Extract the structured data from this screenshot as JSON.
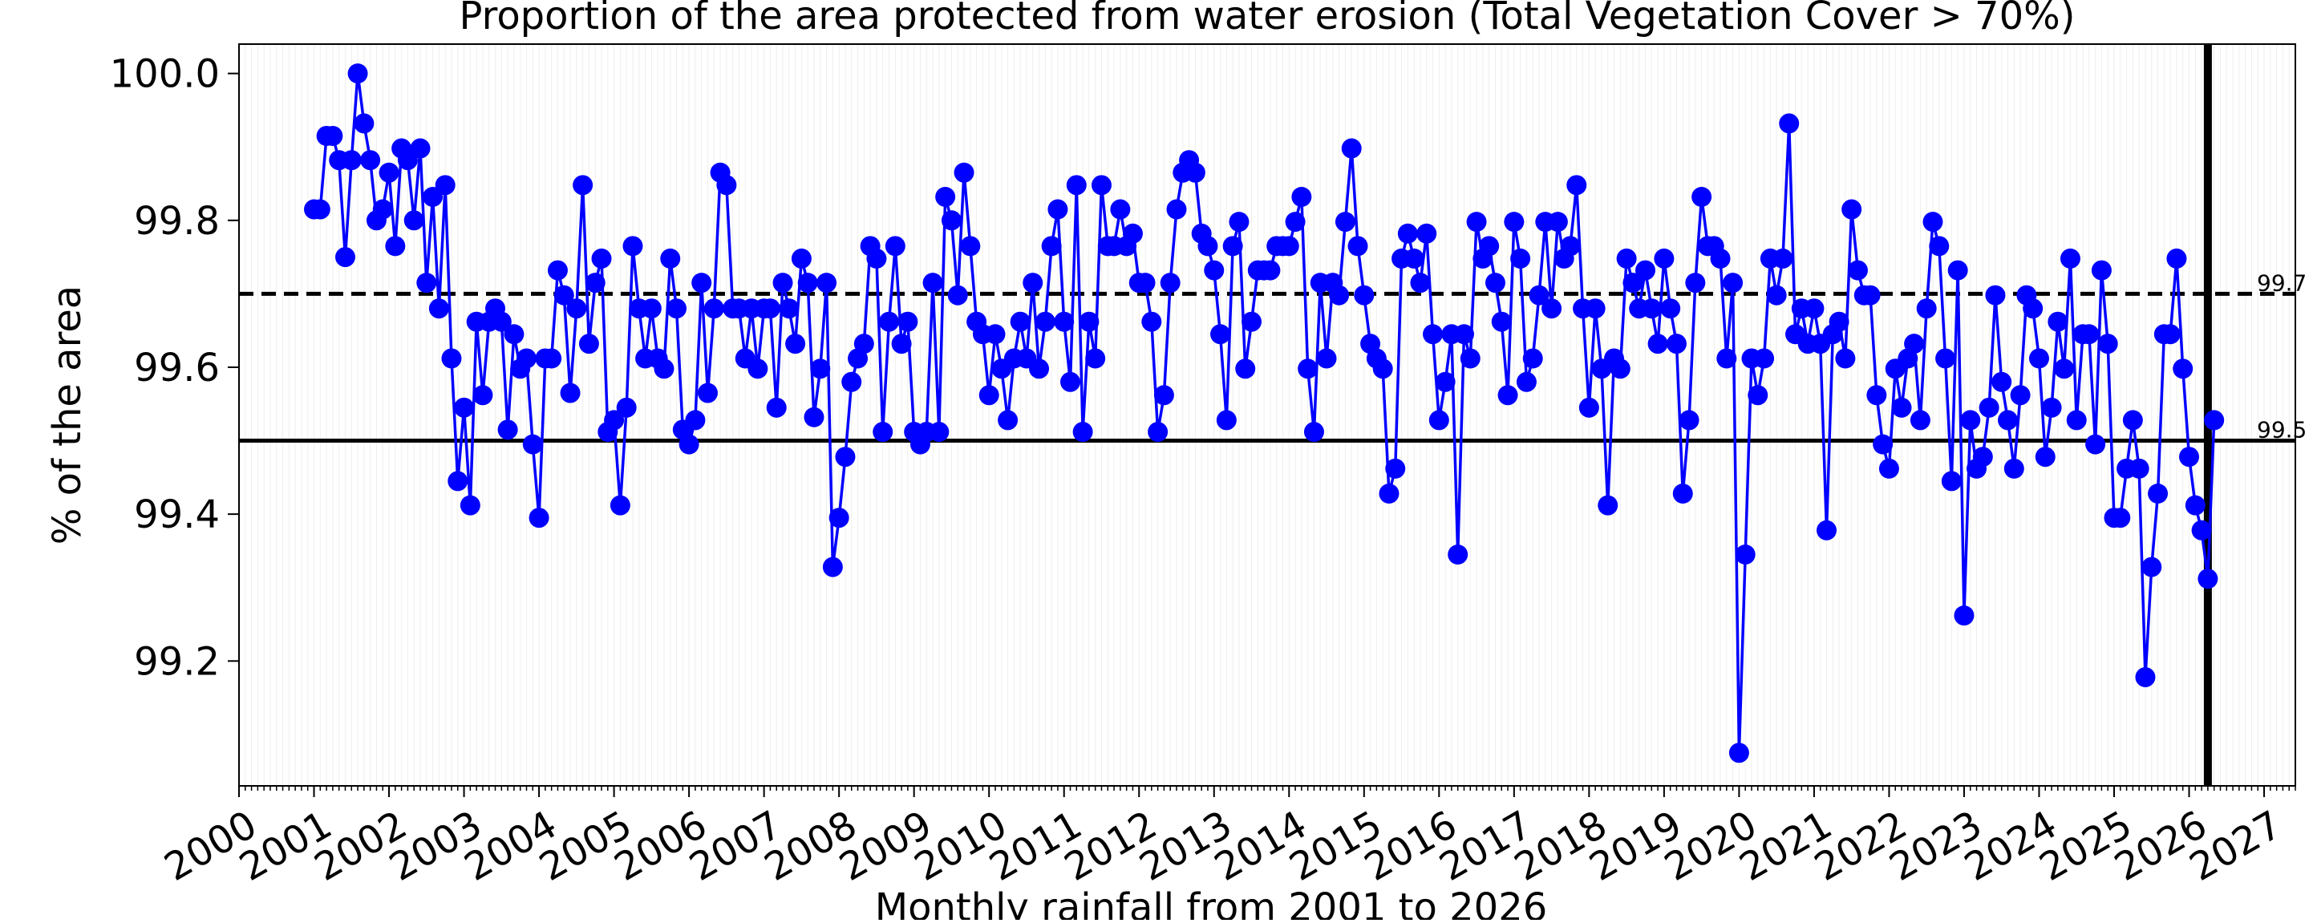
{
  "chart_data": {
    "type": "line",
    "title": "Proportion of the area protected from water erosion (Total Vegetation Cover > 70%)",
    "xlabel": "Monthly rainfall from 2001  to 2026",
    "ylabel": "% of the area",
    "xlim": [
      "2000-01",
      "2027-06"
    ],
    "ylim": [
      99.03,
      100.04
    ],
    "x_ticks": [
      "2000",
      "2001",
      "2002",
      "2003",
      "2004",
      "2005",
      "2006",
      "2007",
      "2008",
      "2009",
      "2010",
      "2011",
      "2012",
      "2013",
      "2014",
      "2015",
      "2016",
      "2017",
      "2018",
      "2019",
      "2020",
      "2021",
      "2022",
      "2023",
      "2024",
      "2025",
      "2026",
      "2027"
    ],
    "y_ticks": [
      "99.2",
      "99.4",
      "99.6",
      "99.8",
      "100.0"
    ],
    "reference_lines": [
      {
        "value": 99.7,
        "style": "dashed",
        "label": "99.7"
      },
      {
        "value": 99.5,
        "style": "solid",
        "label": "99.5"
      }
    ],
    "marker_line": {
      "date": "2026-04",
      "style": "solid thick"
    },
    "grid": "x-minor",
    "series_color": "#0000ff",
    "start_date": "2001-01",
    "frequency": "monthly",
    "series": [
      {
        "values": [
          99.815,
          99.815,
          99.915,
          99.915,
          99.882,
          99.75,
          99.882,
          100.0,
          99.932,
          99.882,
          99.8,
          99.815,
          99.865,
          99.765,
          99.898,
          99.882,
          99.8,
          99.898,
          99.715,
          99.832,
          99.68,
          99.848,
          99.612,
          99.445,
          99.545,
          99.412,
          99.662,
          99.562,
          99.662,
          99.68,
          99.662,
          99.515,
          99.645,
          99.598,
          99.612,
          99.495,
          99.395,
          99.612,
          99.612,
          99.732,
          99.698,
          99.565,
          99.68,
          99.848,
          99.632,
          99.715,
          99.748,
          99.512,
          99.528,
          99.412,
          99.545,
          99.765,
          99.68,
          99.612,
          99.68,
          99.612,
          99.598,
          99.748,
          99.68,
          99.515,
          99.495,
          99.528,
          99.715,
          99.565,
          99.68,
          99.865,
          99.848,
          99.68,
          99.68,
          99.612,
          99.68,
          99.598,
          99.68,
          99.68,
          99.545,
          99.715,
          99.68,
          99.632,
          99.748,
          99.715,
          99.532,
          99.598,
          99.715,
          99.328,
          99.395,
          99.478,
          99.58,
          99.612,
          99.632,
          99.765,
          99.748,
          99.512,
          99.662,
          99.765,
          99.632,
          99.662,
          99.512,
          99.495,
          99.512,
          99.715,
          99.512,
          99.832,
          99.8,
          99.698,
          99.865,
          99.765,
          99.662,
          99.645,
          99.562,
          99.645,
          99.598,
          99.528,
          99.612,
          99.662,
          99.612,
          99.715,
          99.598,
          99.662,
          99.765,
          99.815,
          99.662,
          99.58,
          99.848,
          99.512,
          99.662,
          99.612,
          99.848,
          99.765,
          99.765,
          99.815,
          99.765,
          99.782,
          99.715,
          99.715,
          99.662,
          99.512,
          99.562,
          99.715,
          99.815,
          99.865,
          99.882,
          99.865,
          99.782,
          99.765,
          99.732,
          99.645,
          99.528,
          99.765,
          99.798,
          99.598,
          99.662,
          99.732,
          99.732,
          99.732,
          99.765,
          99.765,
          99.765,
          99.798,
          99.832,
          99.598,
          99.512,
          99.715,
          99.612,
          99.715,
          99.698,
          99.798,
          99.898,
          99.765,
          99.698,
          99.632,
          99.612,
          99.598,
          99.428,
          99.462,
          99.748,
          99.782,
          99.748,
          99.715,
          99.782,
          99.645,
          99.528,
          99.58,
          99.645,
          99.345,
          99.645,
          99.612,
          99.798,
          99.748,
          99.765,
          99.715,
          99.662,
          99.562,
          99.798,
          99.748,
          99.58,
          99.612,
          99.698,
          99.798,
          99.68,
          99.798,
          99.748,
          99.765,
          99.848,
          99.68,
          99.545,
          99.68,
          99.598,
          99.412,
          99.612,
          99.598,
          99.748,
          99.715,
          99.68,
          99.732,
          99.68,
          99.632,
          99.748,
          99.68,
          99.632,
          99.428,
          99.528,
          99.715,
          99.832,
          99.765,
          99.765,
          99.748,
          99.612,
          99.715,
          99.075,
          99.345,
          99.612,
          99.562,
          99.612,
          99.748,
          99.698,
          99.748,
          99.932,
          99.645,
          99.68,
          99.632,
          99.68,
          99.632,
          99.378,
          99.645,
          99.662,
          99.612,
          99.815,
          99.732,
          99.698,
          99.698,
          99.562,
          99.495,
          99.462,
          99.598,
          99.545,
          99.612,
          99.632,
          99.528,
          99.68,
          99.798,
          99.765,
          99.612,
          99.445,
          99.732,
          99.262,
          99.528,
          99.462,
          99.478,
          99.545,
          99.698,
          99.58,
          99.528,
          99.462,
          99.562,
          99.698,
          99.68,
          99.612,
          99.478,
          99.545,
          99.662,
          99.598,
          99.748,
          99.528,
          99.645,
          99.645,
          99.495,
          99.732,
          99.632,
          99.395,
          99.395,
          99.462,
          99.528,
          99.462,
          99.178,
          99.328,
          99.428,
          99.645,
          99.645,
          99.748,
          99.598,
          99.478,
          99.412,
          99.378,
          99.312,
          99.528
        ]
      }
    ]
  }
}
